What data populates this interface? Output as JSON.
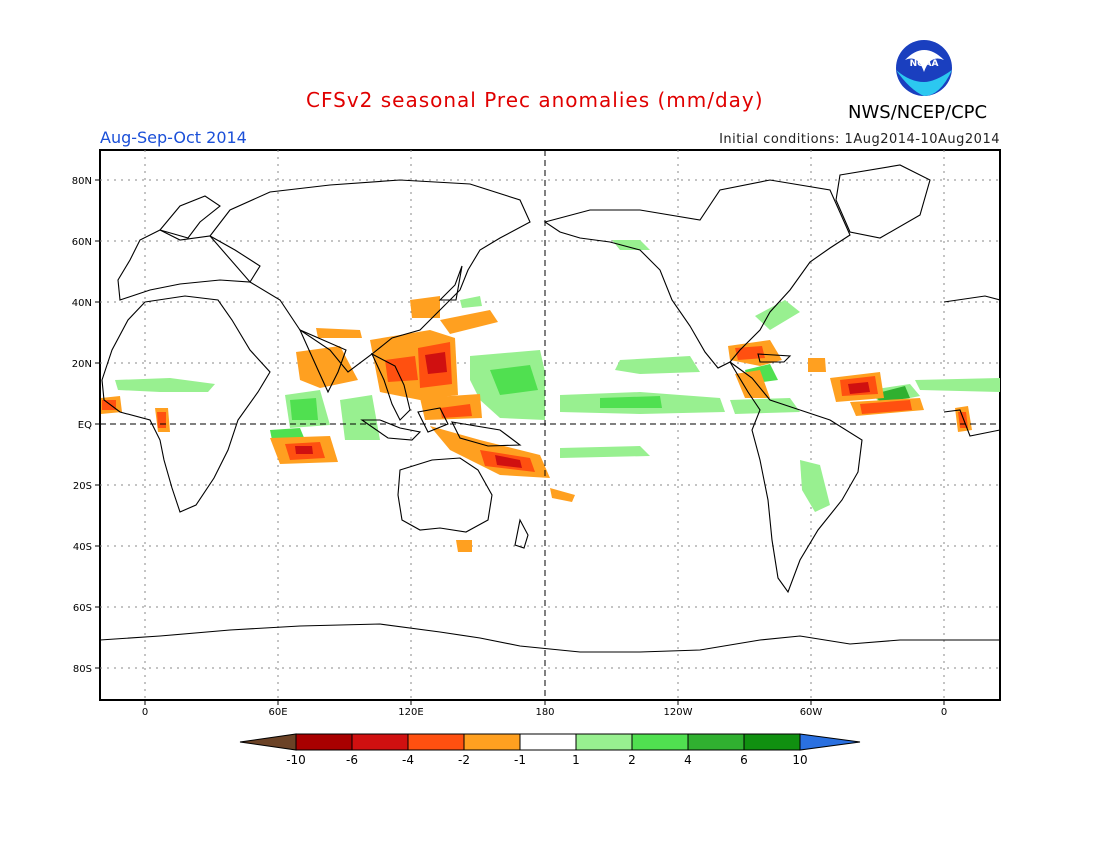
{
  "header": {
    "title": "CFSv2 seasonal Prec anomalies (mm/day)",
    "agency": "NWS/NCEP/CPC",
    "season": "Aug-Sep-Oct 2014",
    "initial_conditions": "Initial conditions: 1Aug2014-10Aug2014"
  },
  "logo": {
    "text": "NOAA",
    "icon": "noaa-logo-icon"
  },
  "axes": {
    "lon_ticks": [
      "0",
      "60E",
      "120E",
      "180",
      "120W",
      "60W",
      "0"
    ],
    "lat_ticks": [
      "80N",
      "60N",
      "40N",
      "20N",
      "EQ",
      "20S",
      "40S",
      "60S",
      "80S"
    ]
  },
  "colorbar": {
    "labels": [
      "-10",
      "-6",
      "-4",
      "-2",
      "-1",
      "1",
      "2",
      "4",
      "6",
      "10"
    ],
    "colors": [
      "#6b4226",
      "#a80000",
      "#d01010",
      "#ff5010",
      "#ffa020",
      "#ffffff",
      "#98f090",
      "#50e050",
      "#30b030",
      "#109010",
      "#2a70e0"
    ]
  },
  "anomaly_colors": {
    "dry_moderate": "#ffa020",
    "dry_strong": "#ff5010",
    "dry_very_strong": "#d01010",
    "wet_light": "#98f090",
    "wet_moderate": "#50e050",
    "wet_strong": "#30b030"
  }
}
